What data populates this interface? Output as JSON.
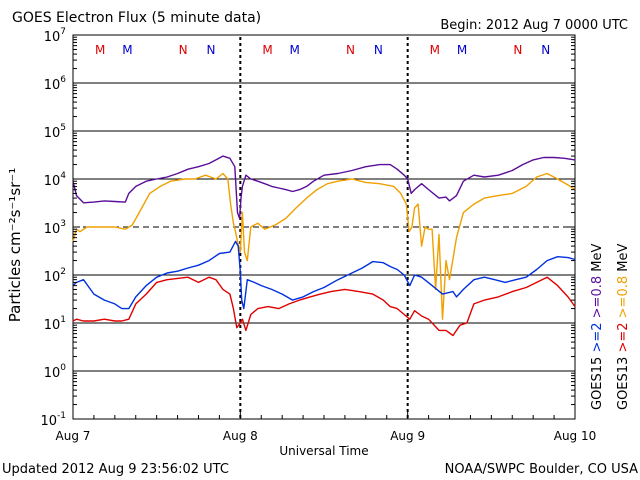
{
  "chart_data": {
    "type": "line",
    "title": "GOES Electron Flux (5 minute data)",
    "begin_label": "Begin: 2012 Aug 7 0000 UTC",
    "xlabel": "Universal Time",
    "ylabel": "Particles cm⁻²s⁻¹sr⁻¹",
    "y_scale": "log",
    "ylim": [
      0.1,
      10000000
    ],
    "xlim": [
      0,
      72
    ],
    "x_unit": "hours since 2012 Aug 7 0000 UTC",
    "x_ticks": [
      {
        "x": 0,
        "label": "Aug 7"
      },
      {
        "x": 24,
        "label": "Aug 8"
      },
      {
        "x": 48,
        "label": "Aug 9"
      },
      {
        "x": 72,
        "label": "Aug 10"
      }
    ],
    "y_ticks": [
      {
        "value": 0.1,
        "base": "10",
        "exp": "-1"
      },
      {
        "value": 1,
        "base": "10",
        "exp": "0"
      },
      {
        "value": 10,
        "base": "10",
        "exp": "1"
      },
      {
        "value": 100,
        "base": "10",
        "exp": "2"
      },
      {
        "value": 1000,
        "base": "10",
        "exp": "3"
      },
      {
        "value": 10000,
        "base": "10",
        "exp": "4"
      },
      {
        "value": 100000,
        "base": "10",
        "exp": "5"
      },
      {
        "value": 1000000,
        "base": "10",
        "exp": "6"
      },
      {
        "value": 10000000,
        "base": "10",
        "exp": "7"
      }
    ],
    "threshold_line": 1000,
    "day_boundaries": [
      24,
      48
    ],
    "mn_markers": [
      {
        "x": 3.9,
        "label": "M",
        "color": "#e00000"
      },
      {
        "x": 7.8,
        "label": "M",
        "color": "#0000d0"
      },
      {
        "x": 15.8,
        "label": "N",
        "color": "#e00000"
      },
      {
        "x": 19.8,
        "label": "N",
        "color": "#0000d0"
      },
      {
        "x": 27.9,
        "label": "M",
        "color": "#e00000"
      },
      {
        "x": 31.8,
        "label": "M",
        "color": "#0000d0"
      },
      {
        "x": 39.8,
        "label": "N",
        "color": "#e00000"
      },
      {
        "x": 43.8,
        "label": "N",
        "color": "#0000d0"
      },
      {
        "x": 51.9,
        "label": "M",
        "color": "#e00000"
      },
      {
        "x": 55.8,
        "label": "M",
        "color": "#0000d0"
      },
      {
        "x": 63.8,
        "label": "N",
        "color": "#e00000"
      },
      {
        "x": 67.8,
        "label": "N",
        "color": "#0000d0"
      }
    ],
    "series": [
      {
        "name": "GOES15 >=0.8 MeV",
        "color": "#5a0d9a",
        "x": [
          0,
          0.5,
          1.5,
          3,
          4.5,
          6,
          7.5,
          8,
          9,
          10.5,
          12,
          13.5,
          15,
          16.5,
          18,
          19.5,
          20.5,
          21.5,
          22.5,
          23.2,
          23.6,
          23.9,
          24.1,
          24.3,
          24.8,
          25.5,
          26.5,
          27.5,
          28.5,
          29.5,
          30.5,
          31.5,
          32.5,
          33.5,
          34.5,
          36,
          38,
          40,
          42,
          44,
          45.5,
          46.5,
          47.5,
          48,
          48.5,
          49,
          50,
          51,
          52.5,
          53.5,
          54,
          55,
          56,
          57.5,
          59,
          61,
          63,
          64.5,
          66,
          67.5,
          69,
          70.5,
          72
        ],
        "y": [
          9000,
          4500,
          3200,
          3300,
          3500,
          3400,
          3300,
          5000,
          7000,
          9000,
          10000,
          11000,
          13000,
          16000,
          18000,
          21000,
          25000,
          30000,
          27000,
          18000,
          2000,
          1500,
          4000,
          7000,
          12000,
          10000,
          9000,
          8000,
          7000,
          6500,
          6000,
          5500,
          6000,
          7000,
          9000,
          12000,
          13000,
          15000,
          18000,
          20000,
          20000,
          16000,
          12000,
          10000,
          5000,
          6000,
          8000,
          6000,
          4000,
          4200,
          3500,
          4500,
          9000,
          12000,
          11000,
          12000,
          15000,
          20000,
          25000,
          28000,
          28000,
          27000,
          25000
        ]
      },
      {
        "name": "GOES13 >=0.8 MeV",
        "color": "#f0a000",
        "x": [
          0,
          0.5,
          1,
          2,
          4,
          6,
          7.5,
          8.5,
          9.5,
          11,
          12.5,
          14,
          16,
          17.5,
          19,
          20.5,
          21.5,
          22.2,
          22.6,
          23,
          23.3,
          23.6,
          24,
          24.3,
          24.6,
          25,
          25.5,
          26.5,
          27.5,
          29,
          30.5,
          32,
          33.5,
          35,
          36.5,
          38,
          40,
          42,
          44,
          46,
          47,
          47.8,
          48.2,
          48.6,
          49,
          49.5,
          50,
          50.5,
          51,
          51.5,
          52,
          52.5,
          53,
          53.5,
          54,
          55,
          56,
          57.5,
          59,
          61,
          63,
          65,
          66.5,
          68,
          69.5,
          71,
          72
        ],
        "y": [
          500,
          900,
          800,
          1000,
          1000,
          1000,
          900,
          1100,
          2000,
          5000,
          7000,
          9000,
          10000,
          10000,
          12000,
          10000,
          13000,
          10000,
          3000,
          1200,
          800,
          500,
          300,
          2000,
          300,
          200,
          1000,
          1200,
          900,
          1100,
          1500,
          2500,
          4000,
          6000,
          8000,
          9000,
          10000,
          8500,
          8000,
          7000,
          5000,
          3000,
          800,
          1000,
          2500,
          3000,
          400,
          1000,
          900,
          900,
          50,
          700,
          12,
          200,
          80,
          600,
          2000,
          3000,
          4000,
          4500,
          5000,
          7000,
          11000,
          13000,
          10000,
          7500,
          6000
        ]
      },
      {
        "name": "GOES15 >=2 MeV",
        "color": "#0030e0",
        "x": [
          0,
          0.5,
          1.5,
          3,
          4.5,
          6,
          7,
          8,
          9,
          10.5,
          12,
          13.5,
          15,
          16.5,
          18,
          19.5,
          21,
          22.5,
          23.3,
          23.7,
          24,
          24.2,
          24.5,
          25,
          26,
          27,
          28.5,
          30,
          31.5,
          33,
          34.5,
          36,
          38,
          40,
          41.5,
          43,
          44.5,
          45.5,
          46.5,
          47.5,
          48.3,
          49,
          50,
          51.5,
          53,
          54.5,
          55,
          56,
          57.5,
          59,
          60.5,
          62,
          63.5,
          65,
          66.5,
          68,
          69.5,
          71,
          72
        ],
        "y": [
          60,
          70,
          80,
          40,
          30,
          25,
          20,
          20,
          35,
          60,
          90,
          110,
          120,
          140,
          160,
          200,
          280,
          300,
          500,
          400,
          120,
          30,
          20,
          80,
          70,
          60,
          50,
          40,
          30,
          35,
          45,
          55,
          80,
          110,
          140,
          190,
          180,
          150,
          130,
          100,
          60,
          100,
          90,
          60,
          40,
          45,
          35,
          50,
          80,
          90,
          80,
          70,
          80,
          90,
          130,
          200,
          240,
          230,
          210
        ]
      },
      {
        "name": "GOES13 >=2 MeV",
        "color": "#e00000",
        "x": [
          0,
          0.5,
          1.5,
          3,
          4.5,
          6,
          7,
          8,
          9,
          10.5,
          12,
          13.5,
          15,
          16.5,
          18,
          19.5,
          20.5,
          21.5,
          22.5,
          23,
          23.5,
          24,
          24.3,
          24.8,
          25.5,
          26.5,
          28,
          29.5,
          31,
          32.5,
          34,
          35.5,
          37,
          39,
          41,
          43,
          44.5,
          45.5,
          46.5,
          47.5,
          48.3,
          49,
          50,
          51,
          52.5,
          53.5,
          54.5,
          55.5,
          56.5,
          57.5,
          59,
          61,
          63,
          65,
          66.5,
          68,
          69.5,
          71,
          72
        ],
        "y": [
          11,
          12,
          11,
          11,
          12,
          11,
          11,
          12,
          25,
          40,
          70,
          80,
          85,
          90,
          70,
          90,
          80,
          50,
          40,
          20,
          8,
          10,
          12,
          7,
          15,
          20,
          22,
          20,
          25,
          30,
          35,
          40,
          45,
          50,
          45,
          40,
          30,
          22,
          20,
          15,
          12,
          18,
          14,
          12,
          7,
          7,
          5.5,
          9,
          10,
          25,
          30,
          35,
          45,
          55,
          70,
          90,
          60,
          35,
          22
        ]
      }
    ],
    "legend_right": [
      {
        "label": "GOES15",
        "color": "#000000"
      },
      {
        "label": ">=2",
        "color": "#0030e0"
      },
      {
        "label": ">=0.8",
        "color": "#5a0d9a"
      },
      {
        "label": "MeV",
        "color": "#000000"
      },
      {
        "label": "GOES13",
        "color": "#000000"
      },
      {
        "label": ">=2",
        "color": "#e00000"
      },
      {
        "label": ">=0.8",
        "color": "#f0a000"
      },
      {
        "label": "MeV",
        "color": "#000000"
      }
    ]
  },
  "footer": {
    "updated": "Updated 2012 Aug  9 23:56:02 UTC",
    "credit": "NOAA/SWPC Boulder, CO USA"
  }
}
